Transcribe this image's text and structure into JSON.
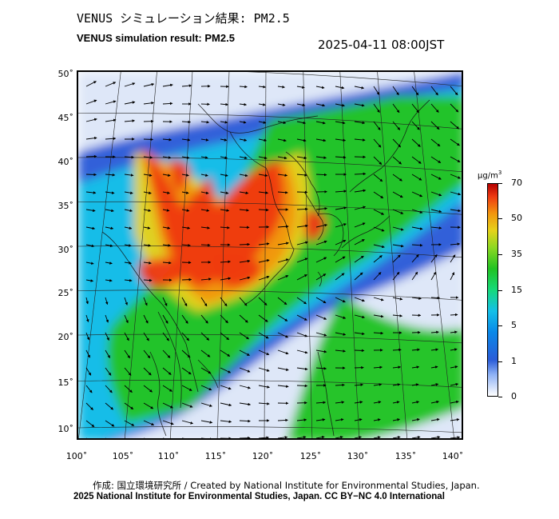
{
  "header": {
    "title_jp": "VENUS シミュレーション結果: PM2.5",
    "title_en": "VENUS simulation result: PM2.5",
    "timestamp": "2025-04-11 08:00JST"
  },
  "map": {
    "lat_labels": [
      "50˚",
      "45˚",
      "40˚",
      "35˚",
      "30˚",
      "25˚",
      "20˚",
      "15˚",
      "10˚"
    ],
    "lon_labels": [
      "100˚",
      "105˚",
      "110˚",
      "115˚",
      "120˚",
      "125˚",
      "130˚",
      "135˚",
      "140˚"
    ],
    "field_colors": {
      "very_low": "#dde6f8",
      "low": "#2a5cd8",
      "mid_low": "#15c0e8",
      "mid": "#22c322",
      "mid_high": "#e6d21a",
      "high": "#f2960f",
      "very_high": "#ee3a12"
    }
  },
  "colorbar": {
    "unit": "μg/m",
    "unit_sup": "3",
    "labels": [
      "70",
      "50",
      "35",
      "15",
      "5",
      "1",
      "0"
    ]
  },
  "credits": {
    "line1": "作成: 国立環境研究所 / Created by National Institute for Environmental Studies, Japan.",
    "line2": "2025 National Institute for Environmental Studies, Japan. CC BY−NC 4.0 International"
  }
}
